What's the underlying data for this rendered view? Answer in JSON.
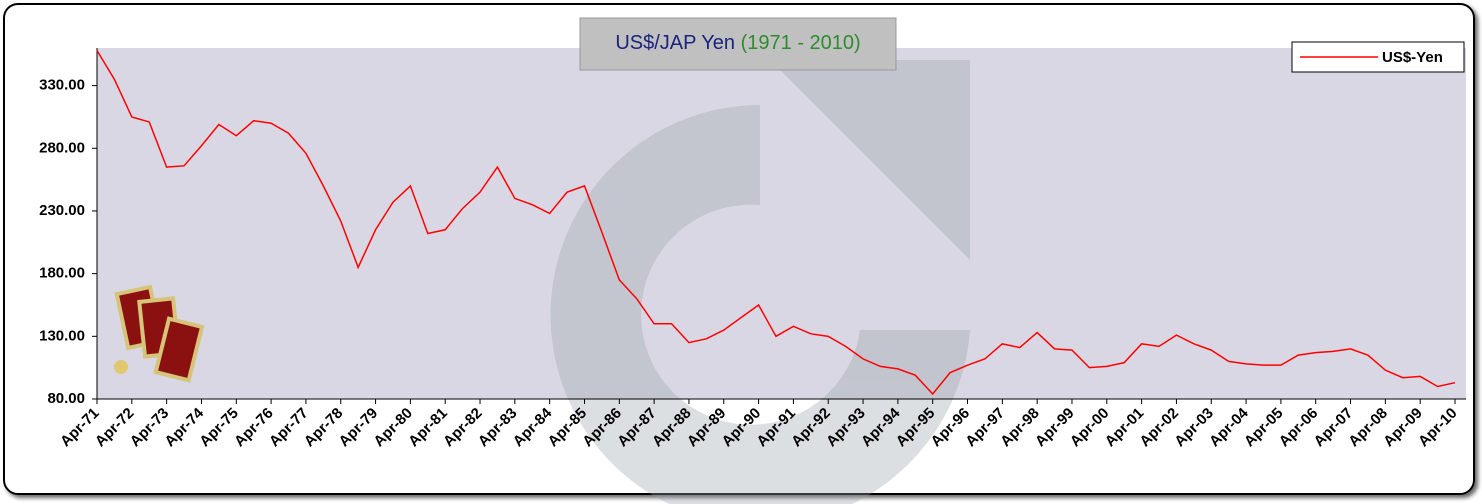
{
  "chart_data": {
    "type": "line",
    "title": "US$/JAP Yen",
    "subtitle": "(1971 - 2010)",
    "categories": [
      "Apr-71",
      null,
      "Apr-72",
      null,
      "Apr-73",
      null,
      "Apr-74",
      null,
      "Apr-75",
      null,
      "Apr-76",
      null,
      "Apr-77",
      null,
      "Apr-78",
      null,
      "Apr-79",
      null,
      "Apr-80",
      null,
      "Apr-81",
      null,
      "Apr-82",
      null,
      "Apr-83",
      null,
      "Apr-84",
      null,
      "Apr-85",
      null,
      "Apr-86",
      null,
      "Apr-87",
      null,
      "Apr-88",
      null,
      "Apr-89",
      null,
      "Apr-90",
      null,
      "Apr-91",
      null,
      "Apr-92",
      null,
      "Apr-93",
      null,
      "Apr-94",
      null,
      "Apr-95",
      null,
      "Apr-96",
      null,
      "Apr-97",
      null,
      "Apr-98",
      null,
      "Apr-99",
      null,
      "Apr-00",
      null,
      "Apr-01",
      null,
      "Apr-02",
      null,
      "Apr-03",
      null,
      "Apr-04",
      null,
      "Apr-05",
      null,
      "Apr-06",
      null,
      "Apr-07",
      null,
      "Apr-08",
      null,
      "Apr-09",
      null,
      "Apr-10"
    ],
    "series": [
      {
        "name": "US$-Yen",
        "color": "#ff0000",
        "values": [
          358,
          335,
          305,
          301,
          265,
          266,
          282,
          299,
          290,
          302,
          300,
          292,
          276,
          250,
          222,
          185,
          215,
          237,
          250,
          212,
          215,
          232,
          245,
          265,
          240,
          235,
          228,
          245,
          250,
          213,
          175,
          160,
          140,
          140,
          125,
          128,
          135,
          145,
          155,
          130,
          138,
          132,
          130,
          122,
          112,
          106,
          104,
          99,
          84,
          101,
          107,
          112,
          124,
          121,
          133,
          120,
          119,
          105,
          106,
          109,
          124,
          122,
          131,
          124,
          119,
          110,
          108,
          107,
          107,
          115,
          117,
          118,
          120,
          115,
          103,
          97,
          98,
          90,
          93
        ]
      }
    ],
    "ylim": [
      80,
      360
    ],
    "yticks": [
      {
        "value": 80,
        "label": "80.00"
      },
      {
        "value": 130,
        "label": "130.00"
      },
      {
        "value": 180,
        "label": "180.00"
      },
      {
        "value": 230,
        "label": "230.00"
      },
      {
        "value": 280,
        "label": "280.00"
      },
      {
        "value": 330,
        "label": "330.00"
      }
    ],
    "legend": "top-right"
  }
}
